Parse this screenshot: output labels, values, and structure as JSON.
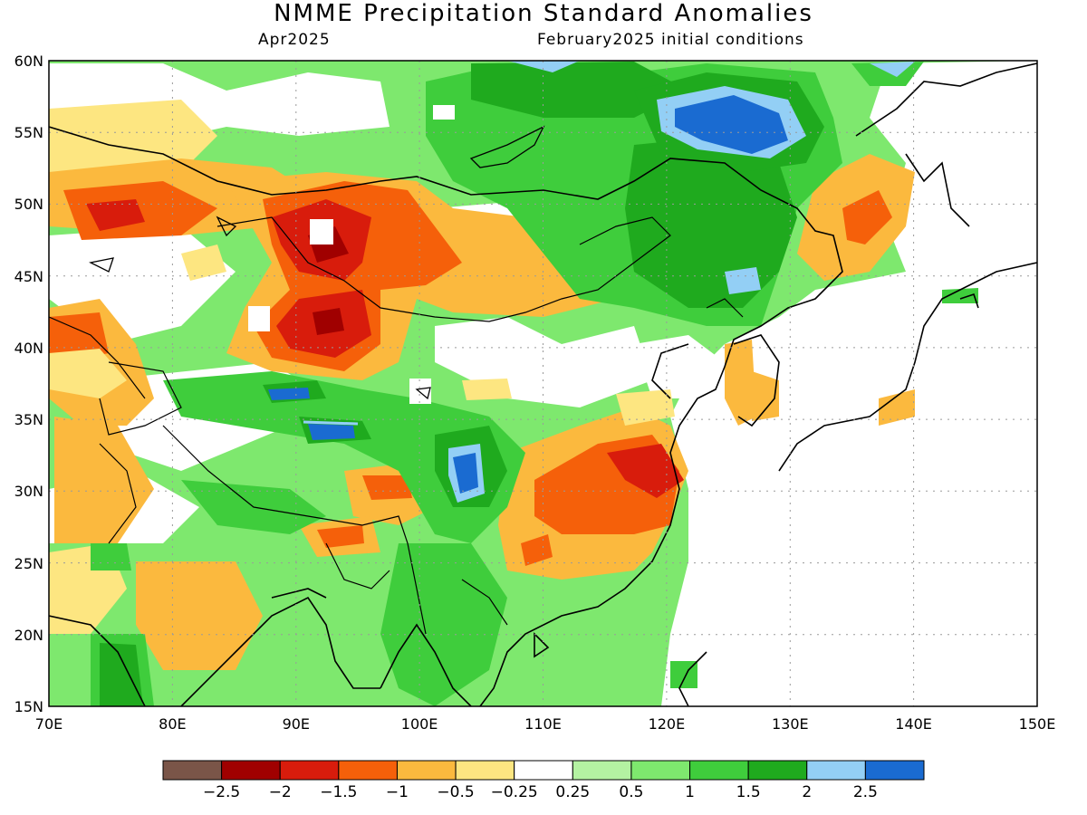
{
  "title": "NMME Precipitation Standard Anomalies",
  "valid_month": "Apr2025",
  "initial_conditions": "February2025 initial conditions",
  "x_ticks": [
    "70E",
    "80E",
    "90E",
    "100E",
    "110E",
    "120E",
    "130E",
    "140E",
    "150E"
  ],
  "y_ticks": [
    "60N",
    "55N",
    "50N",
    "45N",
    "40N",
    "35N",
    "30N",
    "25N",
    "20N",
    "15N"
  ],
  "colorbar": {
    "colors": [
      "#7a5548",
      "#a00000",
      "#d81c0c",
      "#f5600a",
      "#fbb93e",
      "#fde681",
      "#ffffff",
      "#b4f2a2",
      "#7ee86e",
      "#3fcd3c",
      "#1faa1e",
      "#93cff5",
      "#1a6bd1"
    ],
    "labels": [
      "−2.5",
      "−2",
      "−1.5",
      "−1",
      "−0.5",
      "−0.25",
      "0.25",
      "0.5",
      "1",
      "1.5",
      "2",
      "2.5"
    ]
  }
}
